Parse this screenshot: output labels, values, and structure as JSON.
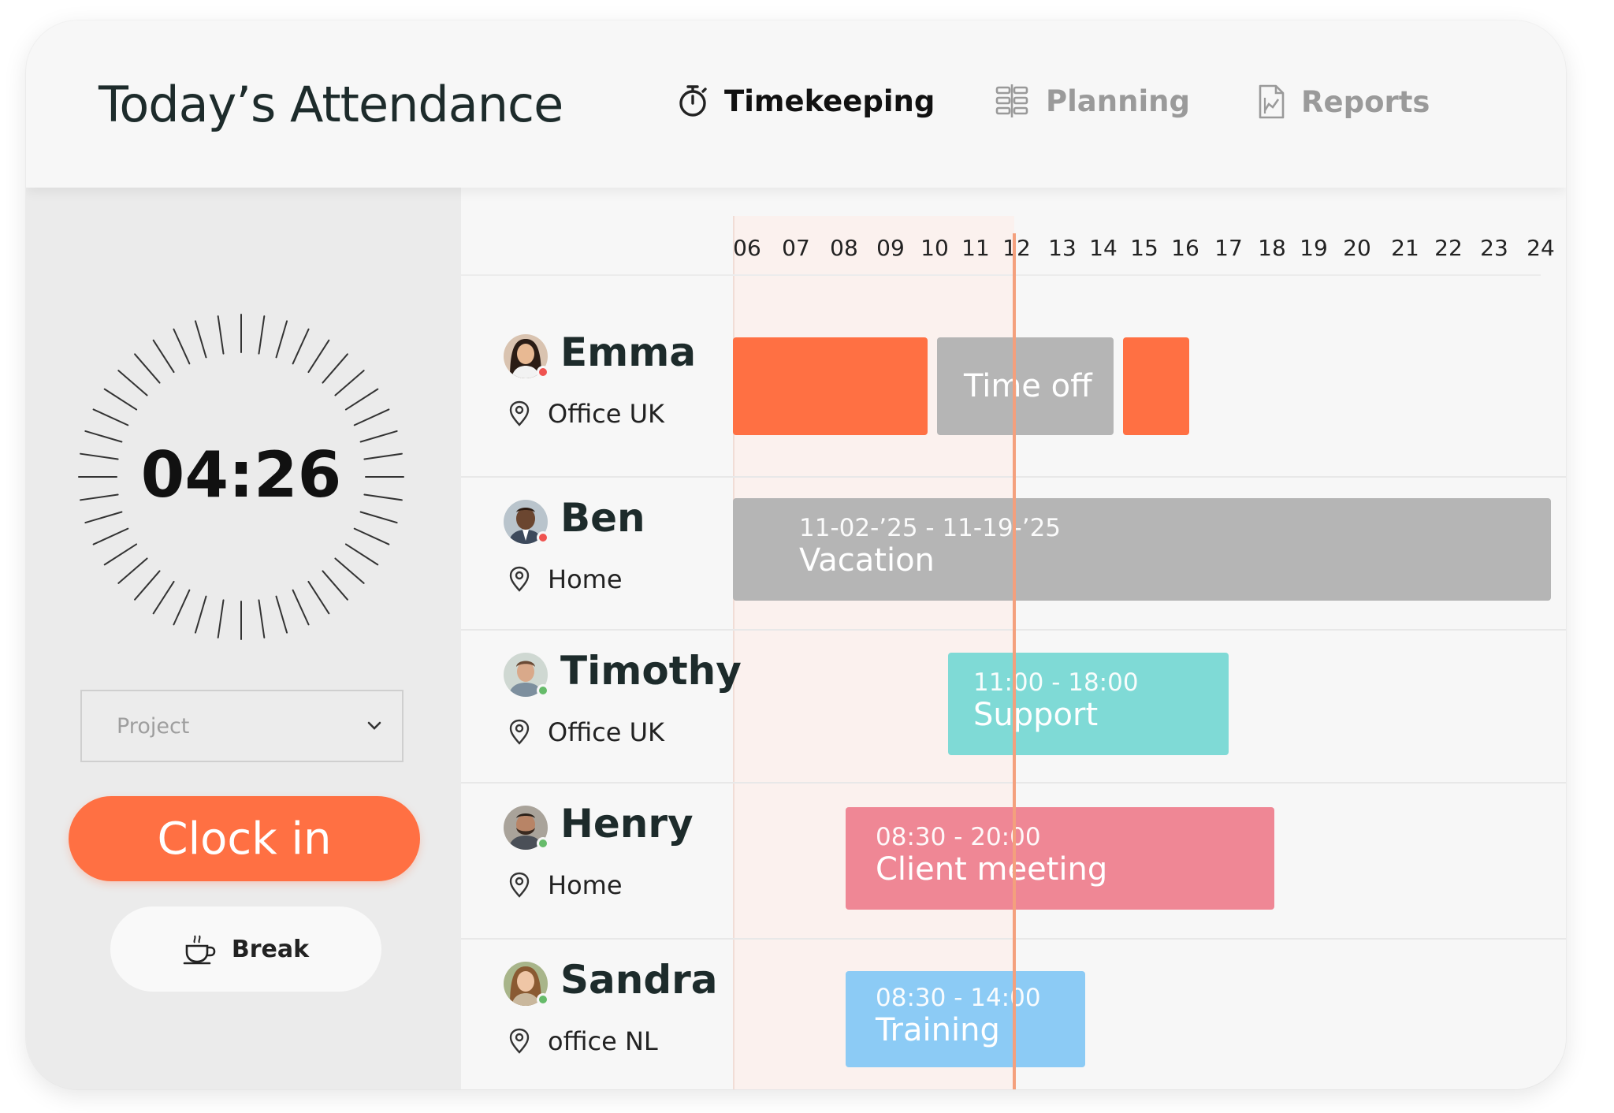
{
  "header": {
    "title": "Today’s Attendance",
    "tabs": [
      {
        "label": "Timekeeping",
        "icon": "stopwatch-icon",
        "active": true
      },
      {
        "label": "Planning",
        "icon": "planning-icon",
        "active": false
      },
      {
        "label": "Reports",
        "icon": "report-document-icon",
        "active": false
      }
    ]
  },
  "left_panel": {
    "timer": "04:26",
    "project_select": {
      "placeholder": "Project",
      "icon": "chevron-down-icon"
    },
    "clock_in_label": "Clock in",
    "break_label": "Break",
    "break_icon": "coffee-cup-icon"
  },
  "schedule": {
    "hours": [
      "06",
      "07",
      "08",
      "09",
      "10",
      "11",
      "12",
      "13",
      "14",
      "15",
      "16",
      "17",
      "18",
      "19",
      "20",
      "21",
      "22",
      "23",
      "24"
    ],
    "people": [
      {
        "name": "Emma",
        "location": "Office UK",
        "status_color": "#ef5350"
      },
      {
        "name": "Ben",
        "location": "Home",
        "status_color": "#ef5350"
      },
      {
        "name": "Timothy",
        "location": "Office UK",
        "status_color": "#66bb6a"
      },
      {
        "name": "Henry",
        "location": "Home",
        "status_color": "#66bb6a"
      },
      {
        "name": "Sandra",
        "location": "office NL",
        "status_color": "#66bb6a"
      }
    ],
    "events": {
      "emma_time_off": {
        "title": "Time off"
      },
      "ben": {
        "time": "11-02-’25 - 11-19-’25",
        "title": "Vacation"
      },
      "timothy": {
        "time": "11:00 - 18:00",
        "title": "Support"
      },
      "henry": {
        "time": "08:30 - 20:00",
        "title": "Client meeting"
      },
      "sandra": {
        "time": "08:30 - 14:00",
        "title": "Training"
      }
    }
  },
  "colors": {
    "accent_orange": "#ff7043",
    "time_off_gray": "#b5b5b5",
    "support_teal": "#7fdad6",
    "client_meeting_pink": "#ef8795",
    "training_blue": "#8ccbf5"
  }
}
